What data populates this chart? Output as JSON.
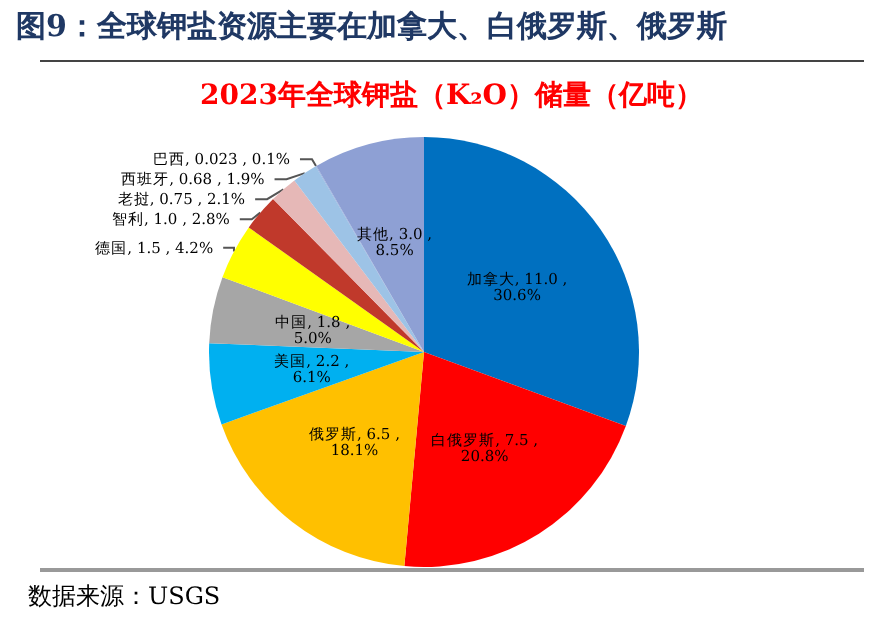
{
  "chart_data": {
    "type": "pie",
    "title": "图9：全球钾盐资源主要在加拿大、白俄罗斯、俄罗斯",
    "subtitle": "2023年全球钾盐（K₂O）储量（亿吨）",
    "categories": [
      "加拿大",
      "白俄罗斯",
      "俄罗斯",
      "美国",
      "中国",
      "德国",
      "智利",
      "老挝",
      "西班牙",
      "巴西",
      "其他"
    ],
    "values": [
      11.0,
      7.5,
      6.5,
      2.2,
      1.8,
      1.5,
      1.0,
      0.75,
      0.68,
      0.023,
      3.0
    ],
    "value_labels": [
      "11.0 , 30.6%",
      "7.5 , 20.8%",
      "6.5 , 18.1%",
      "2.2 , 6.1%",
      "1.8 , 5.0%",
      "1.5 , 4.2%",
      "1.0 , 2.8%",
      "0.75 , 2.1%",
      "0.68 , 1.9%",
      "0.023 , 0.1%",
      "3.0 , 8.5%"
    ],
    "colors": [
      "#0070c0",
      "#ff0000",
      "#ffc000",
      "#00b0f0",
      "#a6a6a6",
      "#ffff00",
      "#c0392b",
      "#e6b8b7",
      "#9dc3e6",
      "#8faadc",
      "#8ea0d4"
    ],
    "legend": false,
    "annotations": [
      "数据来源：USGS"
    ]
  }
}
